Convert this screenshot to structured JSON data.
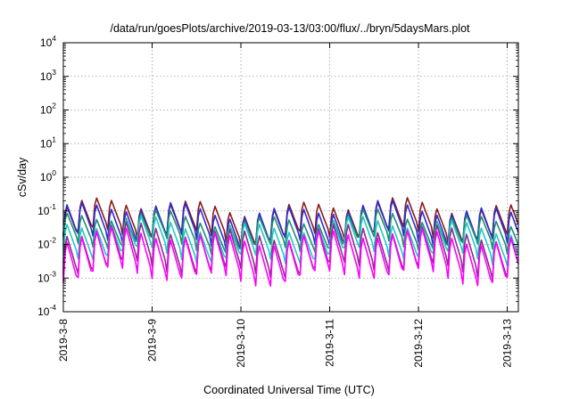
{
  "chart_data": {
    "type": "line",
    "title": "/data/run/goesPlots/archive/2019-03-13/03:00/flux/../bryn/5daysMars.plot",
    "xlabel": "Coordinated Universal Time (UTC)",
    "ylabel": "cSv/day",
    "yscale": "log",
    "ylim": [
      0.0001,
      10000
    ],
    "xlim": [
      "2019-03-08 00:00",
      "2019-03-13 03:00"
    ],
    "x_ticks": [
      "2019-3-8",
      "2019-3-9",
      "2019-3-10",
      "2019-3-11",
      "2019-3-12",
      "2019-3-13"
    ],
    "y_ticks": [
      {
        "base": "10",
        "exp": "-4"
      },
      {
        "base": "10",
        "exp": "-3"
      },
      {
        "base": "10",
        "exp": "-2"
      },
      {
        "base": "10",
        "exp": "-1"
      },
      {
        "base": "10",
        "exp": "0"
      },
      {
        "base": "10",
        "exp": "1"
      },
      {
        "base": "10",
        "exp": "2"
      },
      {
        "base": "10",
        "exp": "3"
      },
      {
        "base": "10",
        "exp": "4"
      }
    ],
    "grid": true,
    "legend": "none",
    "pattern": {
      "shape": "sawtooth",
      "cycles_per_day": 6
    },
    "series": [
      {
        "color": "#8b1a1a",
        "peak": 0.16,
        "trough": 0.018
      },
      {
        "color": "#2b2bd6",
        "peak": 0.13,
        "trough": 0.013
      },
      {
        "color": "#1e8f6e",
        "peak": 0.07,
        "trough": 0.009
      },
      {
        "color": "#26c6c6",
        "peak": 0.045,
        "trough": 0.0045
      },
      {
        "color": "#8c2a8c",
        "peak": 0.03,
        "trough": 0.0018
      },
      {
        "color": "#ff00ff",
        "peak": 0.022,
        "trough": 0.0011
      }
    ]
  }
}
